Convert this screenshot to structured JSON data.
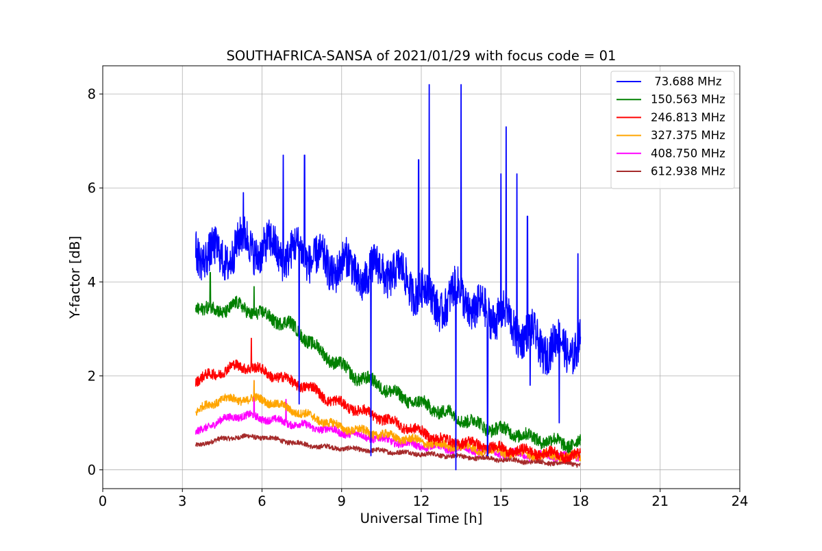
{
  "chart_data": {
    "type": "line",
    "title": "SOUTHAFRICA-SANSA of 2021/01/29 with focus code = 01",
    "xlabel": "Universal Time [h]",
    "ylabel": "Y-factor [dB]",
    "xlim": [
      0,
      24
    ],
    "ylim": [
      -0.4,
      8.6
    ],
    "xticks": [
      0,
      3,
      6,
      9,
      12,
      15,
      18,
      21,
      24
    ],
    "yticks": [
      0,
      2,
      4,
      6,
      8
    ],
    "grid": true,
    "legend_position": "top-right",
    "series": [
      {
        "name": " 73.688 MHz",
        "color": "#0000ff",
        "x": [
          3.5,
          4.0,
          4.5,
          5.0,
          5.5,
          6.0,
          6.5,
          7.0,
          7.5,
          8.0,
          8.5,
          9.0,
          9.5,
          10.0,
          10.5,
          11.0,
          11.5,
          12.0,
          12.5,
          13.0,
          13.5,
          14.0,
          14.5,
          15.0,
          15.5,
          16.0,
          16.5,
          17.0,
          17.5,
          18.0
        ],
        "y": [
          4.7,
          4.6,
          4.5,
          4.7,
          4.9,
          4.6,
          4.8,
          4.5,
          4.7,
          4.5,
          4.3,
          4.4,
          4.2,
          4.1,
          4.3,
          4.2,
          4.0,
          3.8,
          3.6,
          3.5,
          3.9,
          3.3,
          3.4,
          3.3,
          3.0,
          2.9,
          2.6,
          2.7,
          2.5,
          2.8
        ],
        "spikes": [
          [
            5.3,
            5.9
          ],
          [
            6.8,
            6.7
          ],
          [
            7.6,
            6.7
          ],
          [
            11.9,
            6.6
          ],
          [
            12.3,
            8.2
          ],
          [
            13.5,
            8.2
          ],
          [
            15.0,
            6.3
          ],
          [
            15.2,
            7.3
          ],
          [
            15.6,
            6.3
          ],
          [
            16.0,
            5.4
          ],
          [
            17.9,
            4.6
          ]
        ],
        "dips": [
          [
            7.4,
            1.4
          ],
          [
            10.1,
            0.3
          ],
          [
            13.3,
            0.0
          ],
          [
            14.5,
            0.3
          ],
          [
            16.1,
            1.8
          ],
          [
            17.2,
            1.0
          ]
        ]
      },
      {
        "name": "150.563 MHz",
        "color": "#008000",
        "x": [
          3.5,
          4.0,
          4.5,
          5.0,
          5.5,
          6.0,
          6.5,
          7.0,
          7.5,
          8.0,
          8.5,
          9.0,
          9.5,
          10.0,
          10.5,
          11.0,
          11.5,
          12.0,
          12.5,
          13.0,
          13.5,
          14.0,
          14.5,
          15.0,
          15.5,
          16.0,
          16.5,
          17.0,
          17.5,
          18.0
        ],
        "y": [
          3.5,
          3.4,
          3.4,
          3.5,
          3.4,
          3.3,
          3.2,
          3.1,
          2.9,
          2.6,
          2.4,
          2.2,
          2.0,
          1.9,
          1.8,
          1.6,
          1.5,
          1.4,
          1.3,
          1.2,
          1.1,
          1.0,
          0.9,
          0.85,
          0.8,
          0.7,
          0.65,
          0.6,
          0.55,
          0.6
        ],
        "spikes": [
          [
            4.05,
            4.2
          ],
          [
            5.7,
            3.9
          ]
        ],
        "dips": []
      },
      {
        "name": "246.813 MHz",
        "color": "#ff0000",
        "x": [
          3.5,
          4.0,
          4.5,
          5.0,
          5.5,
          6.0,
          6.5,
          7.0,
          7.5,
          8.0,
          8.5,
          9.0,
          9.5,
          10.0,
          10.5,
          11.0,
          11.5,
          12.0,
          12.5,
          13.0,
          13.5,
          14.0,
          14.5,
          15.0,
          15.5,
          16.0,
          16.5,
          17.0,
          17.5,
          18.0
        ],
        "y": [
          1.9,
          2.0,
          2.1,
          2.2,
          2.2,
          2.1,
          2.0,
          1.9,
          1.8,
          1.7,
          1.5,
          1.4,
          1.3,
          1.2,
          1.1,
          1.0,
          0.9,
          0.8,
          0.7,
          0.6,
          0.6,
          0.55,
          0.5,
          0.45,
          0.4,
          0.4,
          0.35,
          0.35,
          0.3,
          0.3
        ],
        "spikes": [
          [
            5.6,
            2.8
          ]
        ],
        "dips": []
      },
      {
        "name": "327.375 MHz",
        "color": "#ffa500",
        "x": [
          3.5,
          4.0,
          4.5,
          5.0,
          5.5,
          6.0,
          6.5,
          7.0,
          7.5,
          8.0,
          8.5,
          9.0,
          9.5,
          10.0,
          10.5,
          11.0,
          11.5,
          12.0,
          12.5,
          13.0,
          13.5,
          14.0,
          14.5,
          15.0,
          15.5,
          16.0,
          16.5,
          17.0,
          17.5,
          18.0
        ],
        "y": [
          1.2,
          1.4,
          1.5,
          1.5,
          1.5,
          1.5,
          1.4,
          1.3,
          1.2,
          1.1,
          1.0,
          0.9,
          0.85,
          0.8,
          0.75,
          0.7,
          0.65,
          0.6,
          0.55,
          0.5,
          0.5,
          0.45,
          0.4,
          0.4,
          0.35,
          0.35,
          0.3,
          0.3,
          0.3,
          0.25
        ],
        "spikes": [
          [
            5.7,
            1.9
          ]
        ],
        "dips": []
      },
      {
        "name": "408.750 MHz",
        "color": "#ff00ff",
        "x": [
          3.5,
          4.0,
          4.5,
          5.0,
          5.5,
          6.0,
          6.5,
          7.0,
          7.5,
          8.0,
          8.5,
          9.0,
          9.5,
          10.0,
          10.5,
          11.0,
          11.5,
          12.0,
          12.5,
          13.0,
          13.5,
          14.0,
          14.5,
          15.0,
          15.5,
          16.0,
          16.5,
          17.0,
          17.5,
          18.0
        ],
        "y": [
          0.75,
          0.95,
          1.05,
          1.15,
          1.15,
          1.1,
          1.05,
          1.0,
          0.95,
          0.9,
          0.85,
          0.8,
          0.75,
          0.7,
          0.65,
          0.6,
          0.55,
          0.5,
          0.5,
          0.45,
          0.45,
          0.4,
          0.4,
          0.35,
          0.35,
          0.3,
          0.3,
          0.3,
          0.3,
          0.25
        ],
        "spikes": [
          [
            5.7,
            1.9
          ],
          [
            6.9,
            1.5
          ]
        ],
        "dips": []
      },
      {
        "name": "612.938 MHz",
        "color": "#a52a2a",
        "x": [
          3.5,
          4.0,
          4.5,
          5.0,
          5.5,
          6.0,
          6.5,
          7.0,
          7.5,
          8.0,
          8.5,
          9.0,
          9.5,
          10.0,
          10.5,
          11.0,
          11.5,
          12.0,
          12.5,
          13.0,
          13.5,
          14.0,
          14.5,
          15.0,
          15.5,
          16.0,
          16.5,
          17.0,
          17.5,
          18.0
        ],
        "y": [
          0.5,
          0.6,
          0.65,
          0.7,
          0.7,
          0.7,
          0.65,
          0.6,
          0.55,
          0.5,
          0.48,
          0.46,
          0.44,
          0.42,
          0.4,
          0.38,
          0.36,
          0.34,
          0.32,
          0.3,
          0.28,
          0.26,
          0.24,
          0.22,
          0.2,
          0.18,
          0.16,
          0.15,
          0.14,
          0.12
        ],
        "spikes": [],
        "dips": []
      }
    ]
  }
}
